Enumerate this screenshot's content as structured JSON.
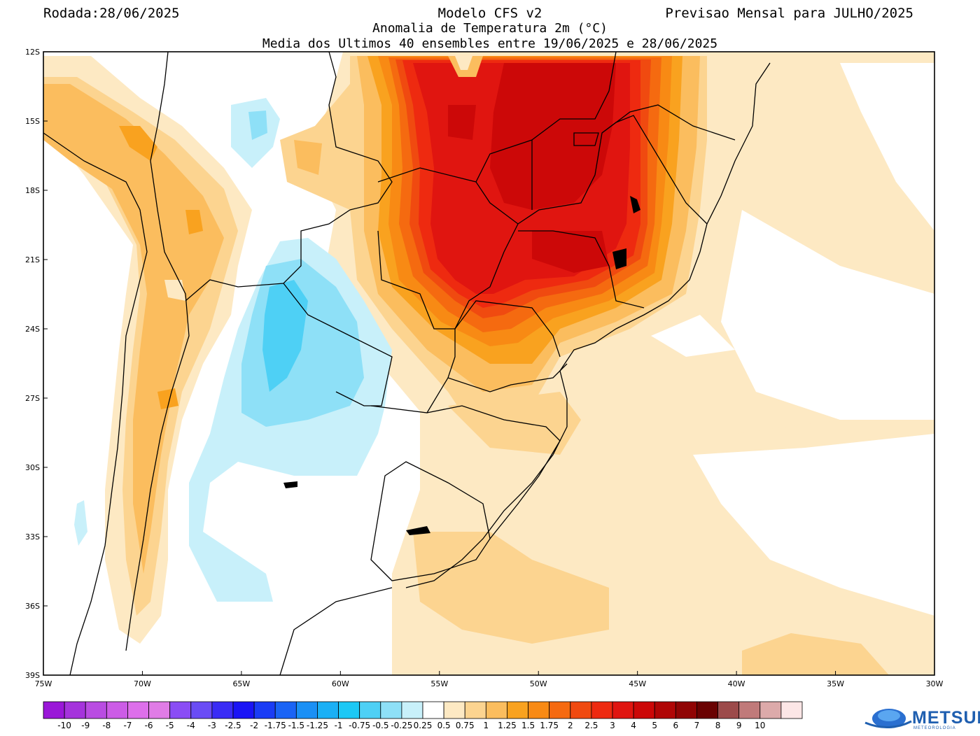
{
  "header": {
    "run_date": "Rodada:28/06/2025",
    "model": "Modelo CFS v2",
    "forecast": "Previsao Mensal para JULHO/2025",
    "subtitle1": "Anomalia de Temperatura 2m (°C)",
    "subtitle2": "Media dos Ultimos 40 ensembles entre 19/06/2025 e 28/06/2025"
  },
  "map": {
    "lat_ticks": [
      "12S",
      "15S",
      "18S",
      "21S",
      "24S",
      "27S",
      "30S",
      "33S",
      "36S",
      "39S"
    ],
    "lon_ticks": [
      "75W",
      "70W",
      "65W",
      "60W",
      "55W",
      "50W",
      "45W",
      "40W",
      "35W",
      "30W"
    ],
    "colors": {
      "ocean_land_default": "#ffffff",
      "c025": "#fde9c3",
      "c05": "#fcd490",
      "c075": "#fbbd5e",
      "c1": "#f9a21f",
      "c125": "#f88a14",
      "c15": "#f56a10",
      "c175": "#f04a10",
      "c2": "#ee2a10",
      "c25": "#e01510",
      "c3": "#cc0808",
      "cold025": "#c8f0fa",
      "cold05": "#8ee0f7",
      "cold075": "#4ed0f5",
      "boundary": "#000000"
    }
  },
  "colorbar": {
    "labels": [
      "-10",
      "-9",
      "-8",
      "-7",
      "-6",
      "-5",
      "-4",
      "-3",
      "-2.5",
      "-2",
      "-1.75",
      "-1.5",
      "-1.25",
      "-1",
      "-0.75",
      "-0.5",
      "-0.25",
      "0.25",
      "0.5",
      "0.75",
      "1",
      "1.25",
      "1.5",
      "1.75",
      "2",
      "2.5",
      "3",
      "4",
      "5",
      "6",
      "7",
      "8",
      "9",
      "10"
    ],
    "colors": [
      "#9a17d8",
      "#a533dc",
      "#b94ce2",
      "#cc5ce6",
      "#dd6fea",
      "#e07ce6",
      "#8a4df5",
      "#6a4cf5",
      "#3a2cf5",
      "#1a14f5",
      "#1a3cf5",
      "#1a64f5",
      "#1a90f5",
      "#1ab0f5",
      "#1cc8f5",
      "#4ed0f5",
      "#8ee0f7",
      "#c8f0fa",
      "#ffffff",
      "#fde9c3",
      "#fcd490",
      "#fbbd5e",
      "#f9a21f",
      "#f88a14",
      "#f56a10",
      "#f04a10",
      "#ee2a10",
      "#e01510",
      "#cc0808",
      "#b00606",
      "#900404",
      "#6a0202",
      "#9c4a4a",
      "#c07a7a",
      "#dcaaaa",
      "#fce6e6"
    ]
  },
  "logo": {
    "text": "METSUL",
    "sub": "METEOROLOGIA"
  }
}
